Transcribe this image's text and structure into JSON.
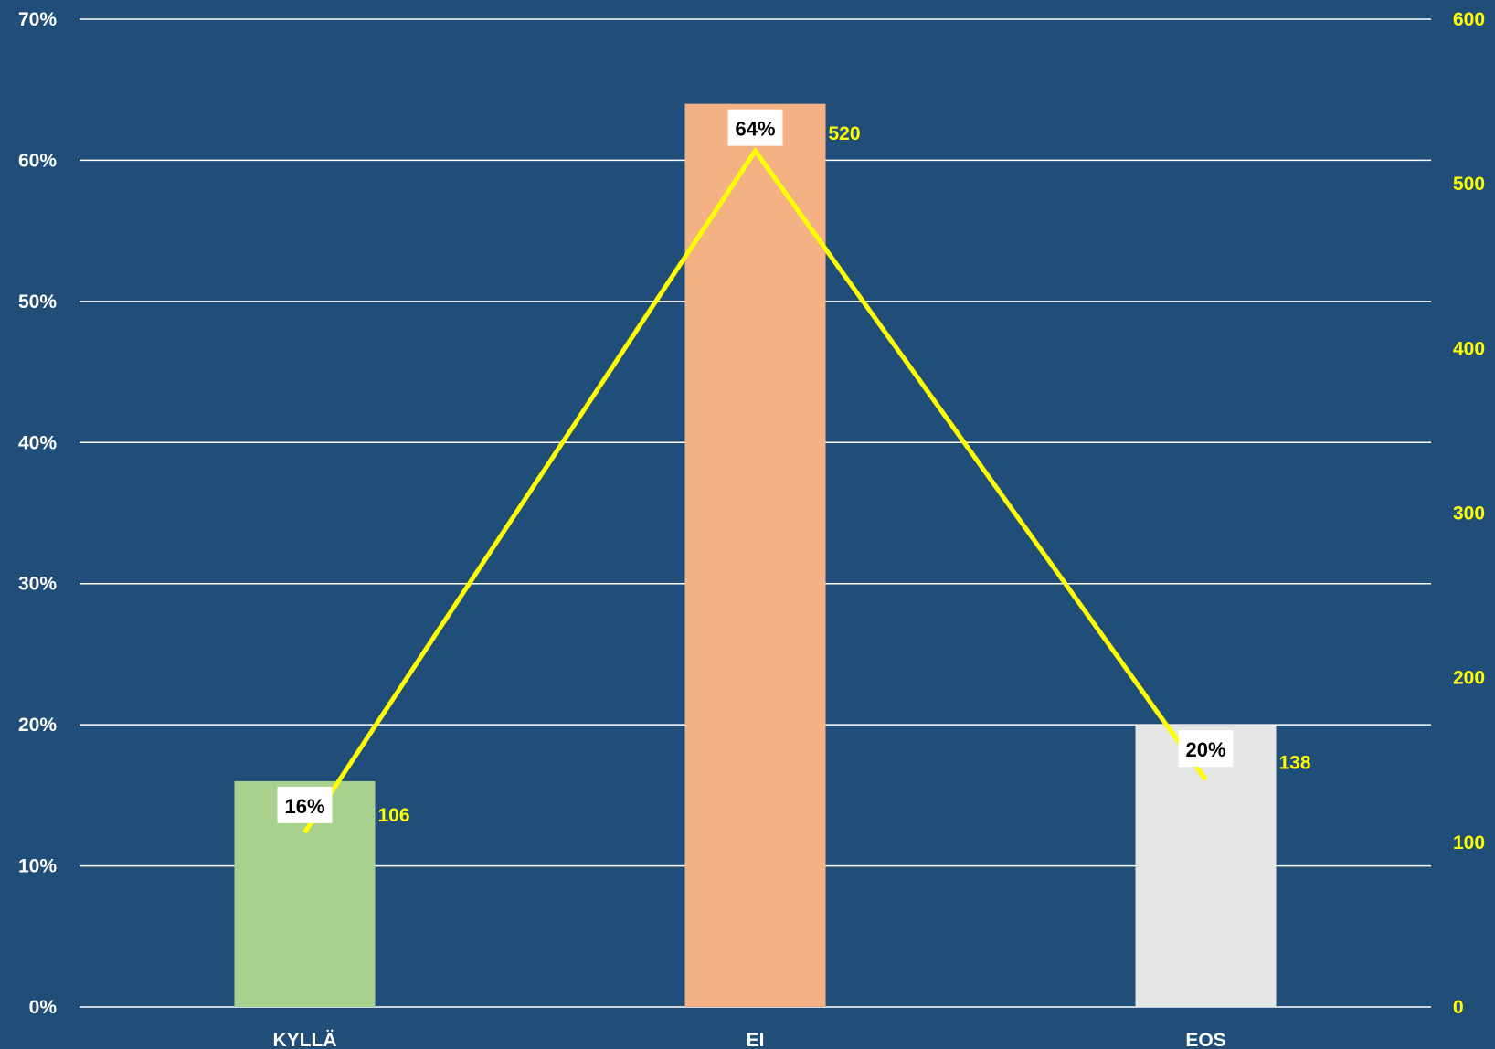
{
  "chart_data": {
    "type": "bar",
    "categories": [
      "KYLLÄ",
      "EI",
      "EOS"
    ],
    "series": [
      {
        "kind": "bar",
        "axis": "left",
        "values": [
          16,
          64,
          20
        ],
        "labels": [
          "16%",
          "64%",
          "20%"
        ],
        "colors": [
          "#a9d18e",
          "#f4b183",
          "#e7e6e6"
        ]
      },
      {
        "kind": "line",
        "axis": "right",
        "values": [
          106,
          520,
          138
        ],
        "labels": [
          "106",
          "520",
          "138"
        ],
        "color": "#ffff00"
      }
    ],
    "y_left": {
      "range": [
        0,
        70
      ],
      "ticks": [
        "0%",
        "10%",
        "20%",
        "30%",
        "40%",
        "50%",
        "60%",
        "70%"
      ]
    },
    "y_right": {
      "range": [
        0,
        600
      ],
      "ticks": [
        "0",
        "100",
        "200",
        "300",
        "400",
        "500",
        "600"
      ]
    },
    "grid": true,
    "legend": "none",
    "background": "#204e78"
  }
}
